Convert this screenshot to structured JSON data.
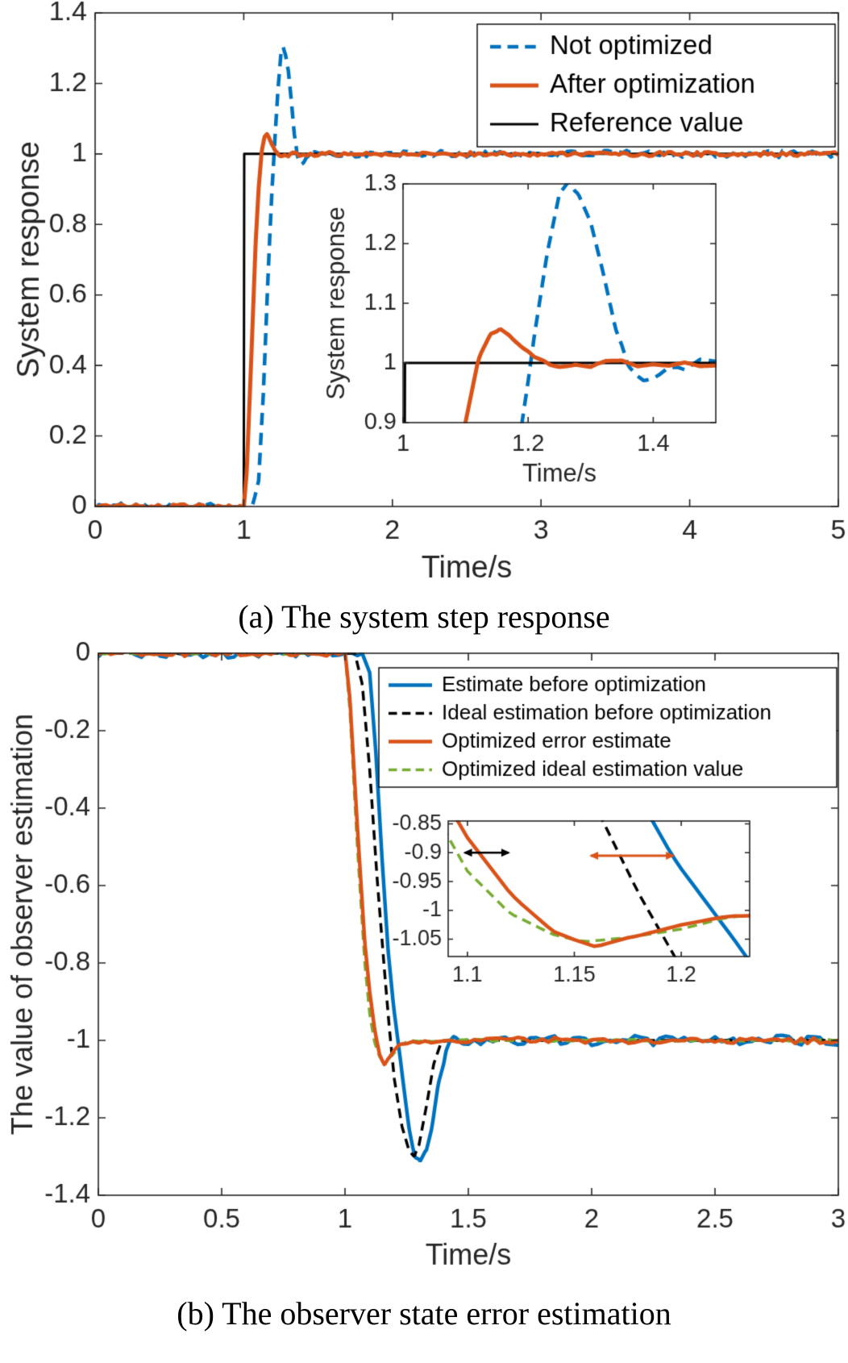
{
  "figure": {
    "captions": {
      "a": "(a) The system step response",
      "b": "(b) The observer state error estimation"
    }
  },
  "colors": {
    "blue": "#0072BD",
    "orange": "#D95319",
    "green": "#77AC30",
    "black": "#000000",
    "axis": "#262626"
  },
  "chart_data": [
    {
      "type": "line",
      "panel": "a",
      "title": "",
      "xlabel": "Time/s",
      "ylabel": "System response",
      "xlim": [
        0,
        5
      ],
      "ylim": [
        0,
        1.4
      ],
      "grid": false,
      "legend_position": "northeast",
      "xticks": {
        "values": [
          0,
          1,
          2,
          3,
          4,
          5
        ],
        "labels": [
          "0",
          "1",
          "2",
          "3",
          "4",
          "5"
        ]
      },
      "yticks": {
        "values": [
          0,
          0.2,
          0.4,
          0.6,
          0.8,
          1,
          1.2,
          1.4
        ],
        "labels": [
          "0",
          "0.2",
          "0.4",
          "0.6",
          "0.8",
          "1",
          "1.2",
          "1.4"
        ]
      },
      "legend": [
        "Not optimized",
        "After optimization",
        "Reference value"
      ],
      "series": [
        {
          "name": "Not optimized",
          "color": "#0072BD",
          "line": "dashed",
          "width": 4.5,
          "noise": 0.01,
          "points": [
            [
              0,
              0
            ],
            [
              1.06,
              0
            ],
            [
              1.1,
              0.08
            ],
            [
              1.13,
              0.3
            ],
            [
              1.16,
              0.62
            ],
            [
              1.19,
              0.9
            ],
            [
              1.21,
              1.05
            ],
            [
              1.23,
              1.18
            ],
            [
              1.25,
              1.275
            ],
            [
              1.265,
              1.305
            ],
            [
              1.28,
              1.29
            ],
            [
              1.3,
              1.24
            ],
            [
              1.32,
              1.15
            ],
            [
              1.34,
              1.05
            ],
            [
              1.36,
              0.99
            ],
            [
              1.385,
              0.972
            ],
            [
              1.41,
              0.98
            ],
            [
              1.44,
              0.995
            ],
            [
              1.48,
              1
            ],
            [
              5,
              1
            ]
          ]
        },
        {
          "name": "After optimization",
          "color": "#D95319",
          "line": "solid",
          "width": 5,
          "noise": 0.006,
          "points": [
            [
              0,
              0
            ],
            [
              1,
              0
            ],
            [
              1.02,
              0.1
            ],
            [
              1.05,
              0.42
            ],
            [
              1.08,
              0.75
            ],
            [
              1.1,
              0.9
            ],
            [
              1.12,
              1
            ],
            [
              1.14,
              1.05
            ],
            [
              1.155,
              1.062
            ],
            [
              1.17,
              1.05
            ],
            [
              1.19,
              1.025
            ],
            [
              1.21,
              1.005
            ],
            [
              1.235,
              0.993
            ],
            [
              1.27,
              0.993
            ],
            [
              1.31,
              1
            ],
            [
              5,
              1
            ]
          ]
        },
        {
          "name": "Reference value",
          "color": "#000000",
          "line": "solid",
          "width": 3,
          "noise": 0,
          "points": [
            [
              0,
              0
            ],
            [
              1,
              0
            ],
            [
              1,
              1
            ],
            [
              5,
              1
            ]
          ]
        }
      ],
      "inset": {
        "xlim": [
          1,
          1.5
        ],
        "ylim": [
          0.9,
          1.3
        ],
        "xlabel": "Time/s",
        "ylabel": "System response",
        "xticks": {
          "values": [
            1,
            1.2,
            1.4
          ],
          "labels": [
            "1",
            "1.2",
            "1.4"
          ]
        },
        "yticks": {
          "values": [
            0.9,
            1,
            1.1,
            1.2,
            1.3
          ],
          "labels": [
            "0.9",
            "1",
            "1.1",
            "1.2",
            "1.3"
          ]
        }
      }
    },
    {
      "type": "line",
      "panel": "b",
      "title": "",
      "xlabel": "Time/s",
      "ylabel": "The value of observer estimation",
      "xlim": [
        0,
        3
      ],
      "ylim": [
        -1.4,
        0
      ],
      "grid": false,
      "legend_position": "northeast",
      "xticks": {
        "values": [
          0,
          0.5,
          1,
          1.5,
          2,
          2.5,
          3
        ],
        "labels": [
          "0",
          "0.5",
          "1",
          "1.5",
          "2",
          "2.5",
          "3"
        ]
      },
      "yticks": {
        "values": [
          0,
          -0.2,
          -0.4,
          -0.6,
          -0.8,
          -1,
          -1.2,
          -1.4
        ],
        "labels": [
          "0",
          "-0.2",
          "-0.4",
          "-0.6",
          "-0.8",
          "-1",
          "-1.2",
          "-1.4"
        ]
      },
      "legend": [
        "Estimate before optimization",
        "Ideal estimation before optimization",
        "Optimized error estimate",
        "Optimized ideal estimation value"
      ],
      "series": [
        {
          "name": "Estimate before optimization",
          "color": "#0072BD",
          "line": "solid",
          "width": 4.5,
          "noise": 0.013,
          "points": [
            [
              0,
              0
            ],
            [
              1.07,
              0
            ],
            [
              1.1,
              -0.06
            ],
            [
              1.125,
              -0.25
            ],
            [
              1.15,
              -0.52
            ],
            [
              1.175,
              -0.78
            ],
            [
              1.195,
              -0.9
            ],
            [
              1.215,
              -1
            ],
            [
              1.235,
              -1.1
            ],
            [
              1.26,
              -1.22
            ],
            [
              1.285,
              -1.3
            ],
            [
              1.305,
              -1.32
            ],
            [
              1.33,
              -1.29
            ],
            [
              1.355,
              -1.21
            ],
            [
              1.38,
              -1.11
            ],
            [
              1.41,
              -1.025
            ],
            [
              1.44,
              -0.995
            ],
            [
              1.48,
              -1
            ],
            [
              3,
              -1
            ]
          ]
        },
        {
          "name": "Ideal estimation before optimization",
          "color": "#000000",
          "line": "dashed",
          "width": 3.5,
          "noise": 0,
          "points": [
            [
              0,
              0
            ],
            [
              1.04,
              0
            ],
            [
              1.07,
              -0.08
            ],
            [
              1.1,
              -0.3
            ],
            [
              1.13,
              -0.58
            ],
            [
              1.16,
              -0.82
            ],
            [
              1.18,
              -0.97
            ],
            [
              1.2,
              -1.1
            ],
            [
              1.23,
              -1.22
            ],
            [
              1.26,
              -1.285
            ],
            [
              1.28,
              -1.3
            ],
            [
              1.3,
              -1.27
            ],
            [
              1.33,
              -1.17
            ],
            [
              1.36,
              -1.06
            ],
            [
              1.39,
              -1.005
            ],
            [
              1.42,
              -1
            ],
            [
              3,
              -1
            ]
          ]
        },
        {
          "name": "Optimized error estimate",
          "color": "#D95319",
          "line": "solid",
          "width": 4.5,
          "noise": 0.008,
          "points": [
            [
              0,
              0
            ],
            [
              1,
              0
            ],
            [
              1.02,
              -0.12
            ],
            [
              1.05,
              -0.45
            ],
            [
              1.08,
              -0.75
            ],
            [
              1.1,
              -0.88
            ],
            [
              1.12,
              -0.97
            ],
            [
              1.14,
              -1.035
            ],
            [
              1.16,
              -1.065
            ],
            [
              1.18,
              -1.05
            ],
            [
              1.2,
              -1.03
            ],
            [
              1.22,
              -1.015
            ],
            [
              1.25,
              -1.005
            ],
            [
              1.3,
              -1
            ],
            [
              3,
              -1
            ]
          ]
        },
        {
          "name": "Optimized ideal estimation value",
          "color": "#77AC30",
          "line": "dashed",
          "width": 3.5,
          "noise": 0.003,
          "points": [
            [
              0,
              0
            ],
            [
              1,
              0
            ],
            [
              1.02,
              -0.15
            ],
            [
              1.05,
              -0.5
            ],
            [
              1.08,
              -0.8
            ],
            [
              1.1,
              -0.93
            ],
            [
              1.12,
              -1.005
            ],
            [
              1.14,
              -1.04
            ],
            [
              1.155,
              -1.052
            ],
            [
              1.175,
              -1.048
            ],
            [
              1.2,
              -1.03
            ],
            [
              1.22,
              -1.015
            ],
            [
              1.26,
              -1.002
            ],
            [
              1.3,
              -1
            ],
            [
              3,
              -1
            ]
          ]
        }
      ],
      "inset": {
        "xlim": [
          1.091,
          1.232
        ],
        "ylim": [
          -1.08,
          -0.845
        ],
        "xticks": {
          "values": [
            1.1,
            1.15,
            1.2
          ],
          "labels": [
            "1.1",
            "1.15",
            "1.2"
          ]
        },
        "yticks": {
          "values": [
            -0.85,
            -0.9,
            -0.95,
            -1,
            -1.05
          ],
          "labels": [
            "-0.85",
            "-0.9",
            "-0.95",
            "-1",
            "-1.05"
          ]
        },
        "annotations": [
          {
            "type": "double-arrow",
            "x1": 1.098,
            "x2": 1.12,
            "y": -0.9,
            "color": "#000000",
            "width": 2.5
          },
          {
            "type": "double-arrow",
            "x1": 1.157,
            "x2": 1.197,
            "y": -0.905,
            "color": "#D95319",
            "width": 3
          }
        ]
      }
    }
  ]
}
